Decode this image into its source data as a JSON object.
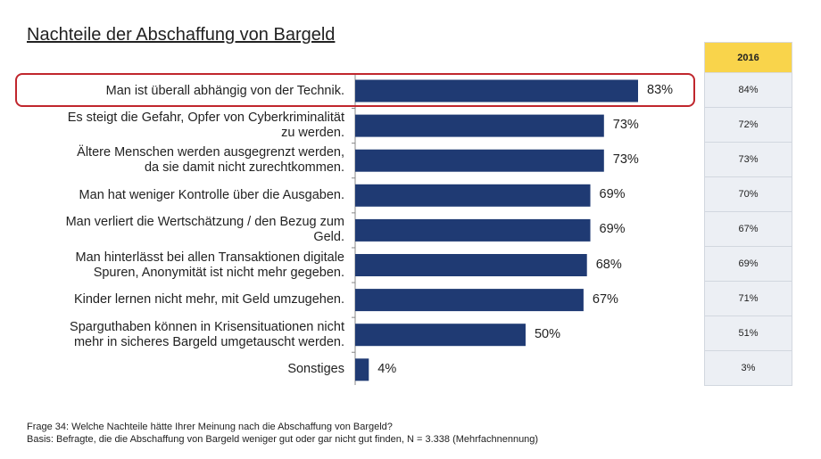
{
  "chart_data": {
    "type": "bar",
    "orientation": "horizontal",
    "title": "Nachteile der Abschaffung von Bargeld",
    "categories": [
      "Man ist überall abhängig von der Technik.",
      "Es steigt die Gefahr, Opfer von Cyberkriminalität zu werden.",
      "Ältere Menschen werden ausgegrenzt werden, da sie damit nicht zurechtkommen.",
      "Man hat weniger Kontrolle über die Ausgaben.",
      "Man verliert die Wertschätzung / den Bezug zum Geld.",
      "Man hinterlässt bei allen Transaktionen digitale Spuren, Anonymität ist nicht mehr gegeben.",
      "Kinder lernen nicht mehr, mit Geld umzugehen.",
      "Sparguthaben können in Krisensituationen nicht mehr in sicheres Bargeld umgetauscht werden.",
      "Sonstiges"
    ],
    "category_lines": [
      [
        "Man ist überall abhängig von der Technik."
      ],
      [
        "Es steigt die Gefahr, Opfer von Cyberkriminalität",
        "zu werden."
      ],
      [
        "Ältere Menschen werden ausgegrenzt werden,",
        "da sie damit nicht zurechtkommen."
      ],
      [
        "Man hat weniger Kontrolle über die Ausgaben."
      ],
      [
        "Man verliert die Wertschätzung / den Bezug zum",
        "Geld."
      ],
      [
        "Man hinterlässt bei allen Transaktionen digitale",
        "Spuren, Anonymität ist nicht mehr gegeben."
      ],
      [
        "Kinder lernen nicht mehr, mit Geld umzugehen."
      ],
      [
        "Sparguthaben können in Krisensituationen nicht",
        "mehr in sicheres Bargeld umgetauscht werden."
      ],
      [
        "Sonstiges"
      ]
    ],
    "values": [
      83,
      73,
      73,
      69,
      69,
      68,
      67,
      50,
      4
    ],
    "value_labels": [
      "83%",
      "73%",
      "73%",
      "69%",
      "69%",
      "68%",
      "67%",
      "50%",
      "4%"
    ],
    "unit": "%",
    "xlim": [
      0,
      100
    ],
    "bar_color": "#1f3a73",
    "highlight_color": "#c0262d",
    "highlighted_category_index": 0,
    "grid": false,
    "comparison": {
      "header": "2016",
      "header_color": "#f9d44b",
      "values": [
        84,
        72,
        73,
        70,
        67,
        69,
        71,
        51,
        3
      ],
      "value_labels": [
        "84%",
        "72%",
        "73%",
        "70%",
        "67%",
        "69%",
        "71%",
        "51%",
        "3%"
      ]
    }
  },
  "footnote": {
    "question": "Frage 34: Welche Nachteile hätte Ihrer Meinung nach die Abschaffung von Bargeld?",
    "basis": "Basis: Befragte, die die Abschaffung von Bargeld weniger gut oder gar nicht gut finden, N = 3.338 (Mehrfachnennung)"
  }
}
